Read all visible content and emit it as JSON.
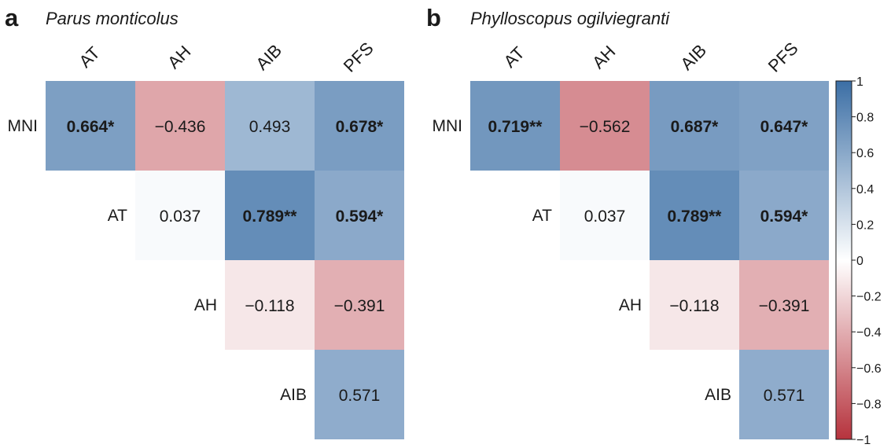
{
  "chart_data": [
    {
      "type": "heatmap",
      "panel": "a",
      "title": "Parus monticolus",
      "columns": [
        "AT",
        "AH",
        "AIB",
        "PFS"
      ],
      "rows": [
        "MNI",
        "AT",
        "AH",
        "AIB"
      ],
      "cells": [
        {
          "row": "MNI",
          "col": "AT",
          "value": 0.664,
          "label": "0.664*",
          "bold": true
        },
        {
          "row": "MNI",
          "col": "AH",
          "value": -0.436,
          "label": "−0.436",
          "bold": false
        },
        {
          "row": "MNI",
          "col": "AIB",
          "value": 0.493,
          "label": "0.493",
          "bold": false
        },
        {
          "row": "MNI",
          "col": "PFS",
          "value": 0.678,
          "label": "0.678*",
          "bold": true
        },
        {
          "row": "AT",
          "col": "AH",
          "value": 0.037,
          "label": "0.037",
          "bold": false
        },
        {
          "row": "AT",
          "col": "AIB",
          "value": 0.789,
          "label": "0.789**",
          "bold": true
        },
        {
          "row": "AT",
          "col": "PFS",
          "value": 0.594,
          "label": "0.594*",
          "bold": true
        },
        {
          "row": "AH",
          "col": "AIB",
          "value": -0.118,
          "label": "−0.118",
          "bold": false
        },
        {
          "row": "AH",
          "col": "PFS",
          "value": -0.391,
          "label": "−0.391",
          "bold": false
        },
        {
          "row": "AIB",
          "col": "PFS",
          "value": 0.571,
          "label": "0.571",
          "bold": false
        }
      ]
    },
    {
      "type": "heatmap",
      "panel": "b",
      "title": "Phylloscopus ogilviegranti",
      "columns": [
        "AT",
        "AH",
        "AIB",
        "PFS"
      ],
      "rows": [
        "MNI",
        "AT",
        "AH",
        "AIB"
      ],
      "cells": [
        {
          "row": "MNI",
          "col": "AT",
          "value": 0.719,
          "label": "0.719**",
          "bold": true
        },
        {
          "row": "MNI",
          "col": "AH",
          "value": -0.562,
          "label": "−0.562",
          "bold": false
        },
        {
          "row": "MNI",
          "col": "AIB",
          "value": 0.687,
          "label": "0.687*",
          "bold": true
        },
        {
          "row": "MNI",
          "col": "PFS",
          "value": 0.647,
          "label": "0.647*",
          "bold": true
        },
        {
          "row": "AT",
          "col": "AH",
          "value": 0.037,
          "label": "0.037",
          "bold": false
        },
        {
          "row": "AT",
          "col": "AIB",
          "value": 0.789,
          "label": "0.789**",
          "bold": true
        },
        {
          "row": "AT",
          "col": "PFS",
          "value": 0.594,
          "label": "0.594*",
          "bold": true
        },
        {
          "row": "AH",
          "col": "AIB",
          "value": -0.118,
          "label": "−0.118",
          "bold": false
        },
        {
          "row": "AH",
          "col": "PFS",
          "value": -0.391,
          "label": "−0.391",
          "bold": false
        },
        {
          "row": "AIB",
          "col": "PFS",
          "value": 0.571,
          "label": "0.571",
          "bold": false
        }
      ]
    }
  ],
  "colorbar": {
    "range": [
      -1,
      1
    ],
    "ticks": [
      1,
      0.8,
      0.6,
      0.4,
      0.2,
      0,
      -0.2,
      -0.4,
      -0.6,
      -0.8,
      -1
    ],
    "tick_labels": [
      "1",
      "0.8",
      "0.6",
      "0.4",
      "0.2",
      "0",
      "−0.2",
      "−0.4",
      "−0.6",
      "−0.8",
      "−1"
    ],
    "colors": {
      "positive": "#3b6ea5",
      "zero": "#ffffff",
      "negative": "#b6333d"
    }
  }
}
